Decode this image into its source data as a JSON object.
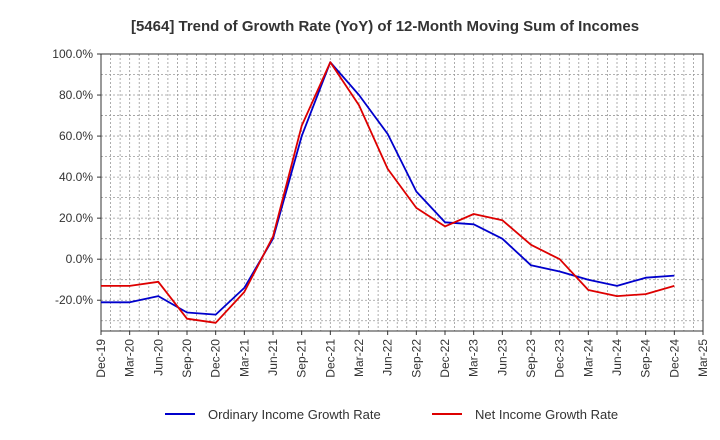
{
  "chart_data": {
    "type": "line",
    "title": "[5464]  Trend of Growth Rate (YoY) of 12-Month Moving Sum of Incomes",
    "xlabel": "",
    "ylabel": "",
    "ylim": [
      -35,
      100
    ],
    "y_ticks": [
      100,
      80,
      60,
      40,
      20,
      0,
      -20
    ],
    "y_tick_labels": [
      "100.0%",
      "80.0%",
      "60.0%",
      "40.0%",
      "20.0%",
      "0.0%",
      "-20.0%"
    ],
    "x_labels": [
      "Dec-19",
      "Mar-20",
      "Jun-20",
      "Sep-20",
      "Dec-20",
      "Mar-21",
      "Jun-21",
      "Sep-21",
      "Dec-21",
      "Mar-22",
      "Jun-22",
      "Sep-22",
      "Dec-22",
      "Mar-23",
      "Jun-23",
      "Sep-23",
      "Dec-23",
      "Mar-24",
      "Jun-24",
      "Sep-24",
      "Dec-24",
      "Mar-25"
    ],
    "grid": true,
    "legend_position": "bottom",
    "series": [
      {
        "name": "Ordinary Income Growth Rate",
        "color": "#0000cc",
        "values": [
          -21,
          -21,
          -18,
          -26,
          -27,
          -14,
          10,
          60,
          96,
          80,
          61,
          33,
          18,
          17,
          10,
          -3,
          -6,
          -10,
          -13,
          -9,
          -8,
          null
        ]
      },
      {
        "name": "Net Income Growth Rate",
        "color": "#dd0000",
        "values": [
          -13,
          -13,
          -11,
          -29,
          -31,
          -16,
          11,
          65,
          96,
          75,
          44,
          25,
          16,
          22,
          19,
          7,
          0,
          -15,
          -18,
          -17,
          -13,
          null
        ]
      }
    ]
  }
}
